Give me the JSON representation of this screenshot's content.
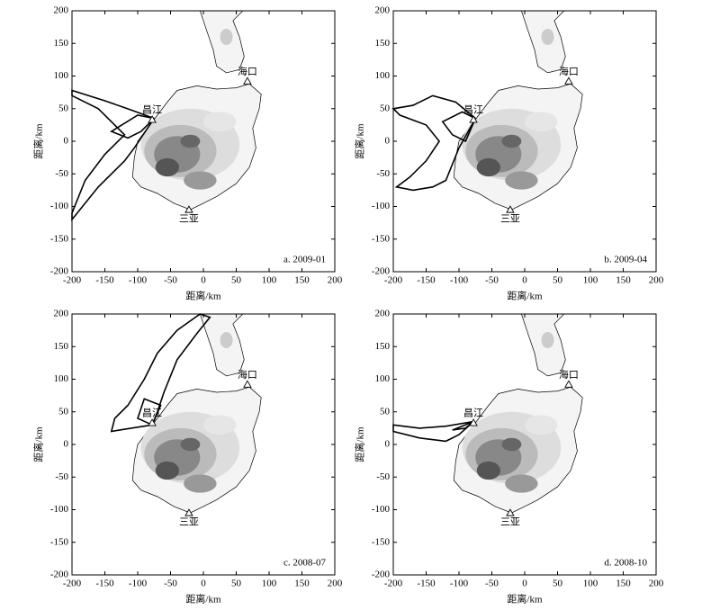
{
  "chart_data": [
    {
      "type": "map",
      "label": "a. 2009-01",
      "xlabel": "距离/km",
      "ylabel": "距离/km",
      "xlim": [
        -200,
        200
      ],
      "ylim": [
        -200,
        200
      ],
      "xticks": [
        -200,
        -150,
        -100,
        -50,
        0,
        50,
        100,
        150,
        200
      ],
      "yticks": [
        -200,
        -150,
        -100,
        -50,
        0,
        50,
        100,
        150,
        200
      ],
      "points": {
        "labels": [
          "海口",
          "昌江",
          "三亚"
        ],
        "x": [
          67,
          -78,
          -22
        ],
        "y": [
          92,
          33,
          -105
        ]
      }
    },
    {
      "type": "map",
      "label": "b. 2009-04",
      "xlabel": "距离/km",
      "ylabel": "距离/km",
      "xlim": [
        -200,
        200
      ],
      "ylim": [
        -200,
        200
      ],
      "xticks": [
        -200,
        -150,
        -100,
        -50,
        0,
        50,
        100,
        150,
        200
      ],
      "yticks": [
        -200,
        -150,
        -100,
        -50,
        0,
        50,
        100,
        150,
        200
      ],
      "points": {
        "labels": [
          "海口",
          "昌江",
          "三亚"
        ],
        "x": [
          67,
          -78,
          -22
        ],
        "y": [
          92,
          33,
          -105
        ]
      }
    },
    {
      "type": "map",
      "label": "c. 2008-07",
      "xlabel": "距离/km",
      "ylabel": "距离/km",
      "xlim": [
        -200,
        200
      ],
      "ylim": [
        -200,
        200
      ],
      "xticks": [
        -200,
        -150,
        -100,
        -50,
        0,
        50,
        100,
        150,
        200
      ],
      "yticks": [
        -200,
        -150,
        -100,
        -50,
        0,
        50,
        100,
        150,
        200
      ],
      "points": {
        "labels": [
          "海口",
          "昌江",
          "三亚"
        ],
        "x": [
          67,
          -78,
          -22
        ],
        "y": [
          92,
          33,
          -105
        ]
      }
    },
    {
      "type": "map",
      "label": "d. 2008-10",
      "xlabel": "距离/km",
      "ylabel": "距离/km",
      "xlim": [
        -200,
        200
      ],
      "ylim": [
        -200,
        200
      ],
      "xticks": [
        -200,
        -150,
        -100,
        -50,
        0,
        50,
        100,
        150,
        200
      ],
      "yticks": [
        -200,
        -150,
        -100,
        -50,
        0,
        50,
        100,
        150,
        200
      ],
      "points": {
        "labels": [
          "海口",
          "昌江",
          "三亚"
        ],
        "x": [
          67,
          -78,
          -22
        ],
        "y": [
          92,
          33,
          -105
        ]
      }
    }
  ]
}
